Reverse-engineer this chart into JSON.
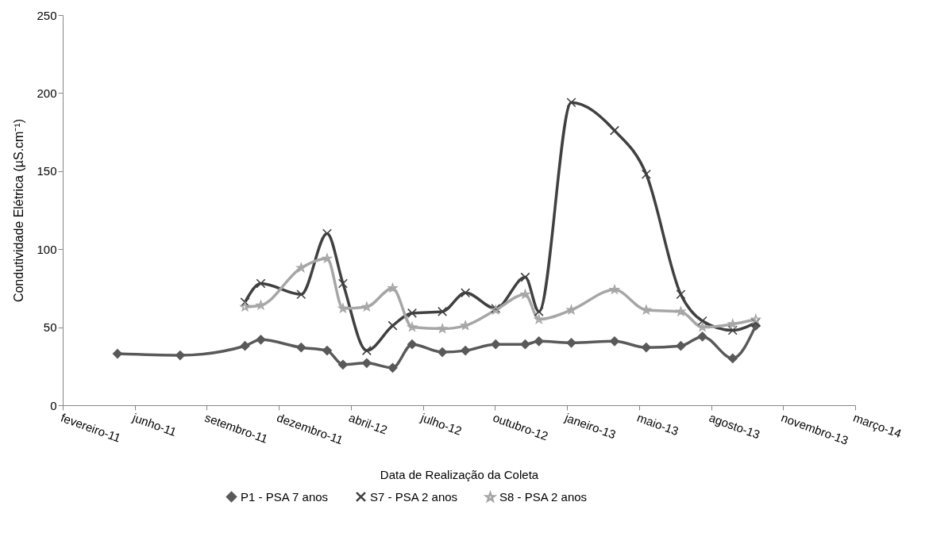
{
  "chart_data": {
    "type": "line",
    "xlabel": "Data de Realização da Coleta",
    "ylabel": "Condutividade Elétrica (µS.cm⁻¹)",
    "xlim": [
      "2011-02-28",
      "2014-03-04"
    ],
    "xticks": [
      {
        "value": "2011-02-28",
        "label": "fevereiro-11"
      },
      {
        "value": "2011-06-08",
        "label": "junho-11"
      },
      {
        "value": "2011-09-16",
        "label": "setembro-11"
      },
      {
        "value": "2011-12-25",
        "label": "dezembro-11"
      },
      {
        "value": "2012-04-03",
        "label": "abril-12"
      },
      {
        "value": "2012-07-12",
        "label": "julho-12"
      },
      {
        "value": "2012-10-20",
        "label": "outubro-12"
      },
      {
        "value": "2013-01-28",
        "label": "janeiro-13"
      },
      {
        "value": "2013-05-08",
        "label": "maio-13"
      },
      {
        "value": "2013-08-16",
        "label": "agosto-13"
      },
      {
        "value": "2013-11-24",
        "label": "novembro-13"
      },
      {
        "value": "2014-03-04",
        "label": "março-14"
      }
    ],
    "ylim": [
      0,
      250
    ],
    "yticks": [
      0,
      50,
      100,
      150,
      200,
      250
    ],
    "grid": false,
    "legend": "bottom",
    "series": [
      {
        "name": "P1 - PSA 7 anos",
        "color": "#595959",
        "marker": "diamond",
        "x": [
          "2011-05-15",
          "2011-08-10",
          "2011-11-08",
          "2011-11-30",
          "2012-01-25",
          "2012-03-01",
          "2012-03-23",
          "2012-04-25",
          "2012-05-31",
          "2012-06-27",
          "2012-08-08",
          "2012-09-09",
          "2012-10-21",
          "2012-12-01",
          "2012-12-20",
          "2013-02-03",
          "2013-04-04",
          "2013-05-18",
          "2013-07-05",
          "2013-08-04",
          "2013-09-15",
          "2013-10-17"
        ],
        "values": [
          33,
          32,
          38,
          42,
          37,
          35,
          26,
          27,
          24,
          39,
          34,
          35,
          39,
          39,
          41,
          40,
          41,
          37,
          38,
          44,
          30,
          51
        ]
      },
      {
        "name": "S7 - PSA 2 anos",
        "color": "#404040",
        "marker": "cross",
        "x": [
          "2011-11-08",
          "2011-11-30",
          "2012-01-25",
          "2012-03-01",
          "2012-03-23",
          "2012-04-25",
          "2012-05-31",
          "2012-06-27",
          "2012-08-08",
          "2012-09-09",
          "2012-10-21",
          "2012-12-01",
          "2012-12-20",
          "2013-02-03",
          "2013-04-04",
          "2013-05-18",
          "2013-07-05",
          "2013-08-04",
          "2013-09-15",
          "2013-10-17"
        ],
        "values": [
          66,
          78,
          71,
          110,
          78,
          35,
          51,
          59,
          60,
          72,
          62,
          82,
          60,
          194,
          176,
          148,
          71,
          54,
          48,
          53
        ]
      },
      {
        "name": "S8 - PSA 2 anos",
        "color": "#a6a6a6",
        "marker": "star",
        "x": [
          "2011-11-08",
          "2011-11-30",
          "2012-01-25",
          "2012-03-01",
          "2012-03-23",
          "2012-04-25",
          "2012-05-31",
          "2012-06-27",
          "2012-08-08",
          "2012-09-09",
          "2012-10-21",
          "2012-12-01",
          "2012-12-20",
          "2013-02-03",
          "2013-04-04",
          "2013-05-18",
          "2013-07-05",
          "2013-08-04",
          "2013-09-15",
          "2013-10-17"
        ],
        "values": [
          63,
          64,
          88,
          94,
          62,
          63,
          75,
          50,
          49,
          51,
          61,
          71,
          55,
          61,
          74,
          61,
          60,
          50,
          52,
          55
        ]
      }
    ]
  }
}
